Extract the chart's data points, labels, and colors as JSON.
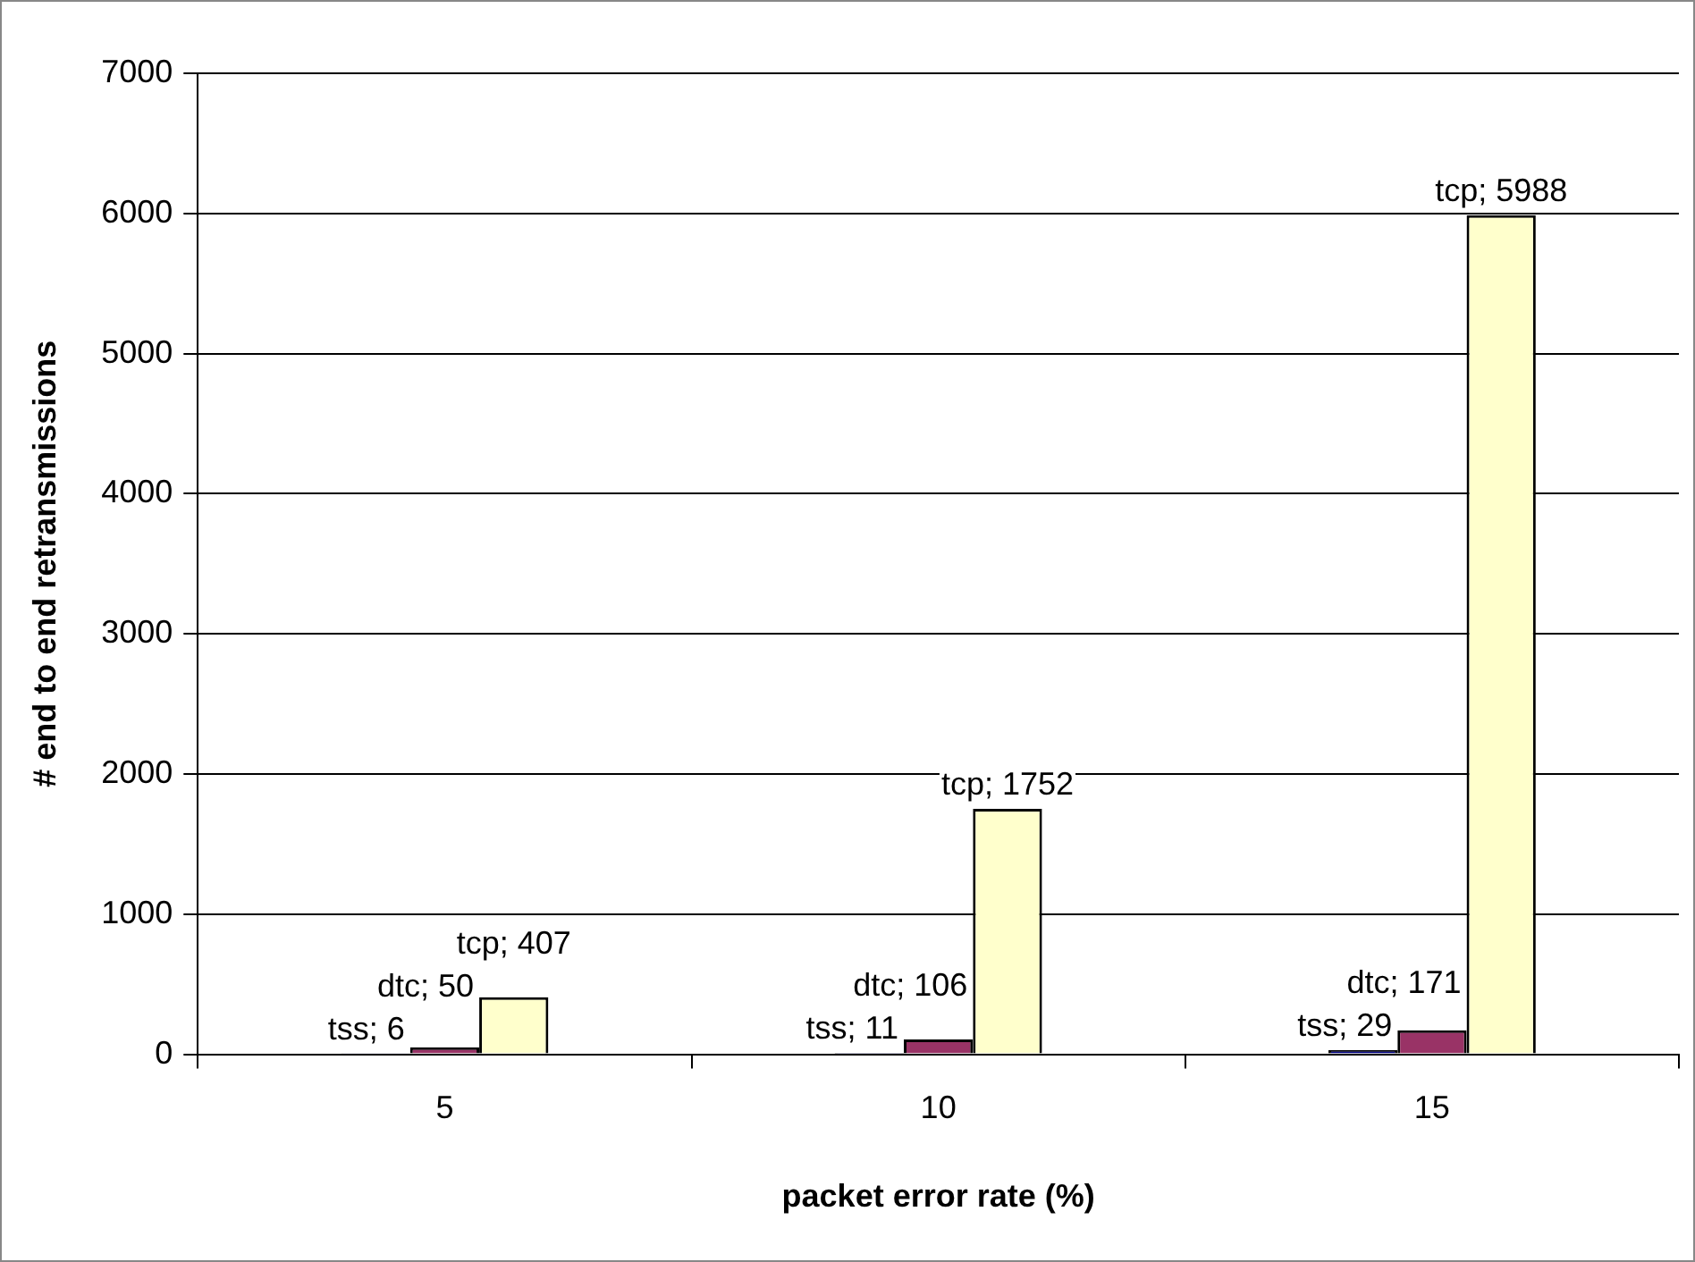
{
  "chart_data": {
    "type": "bar",
    "xlabel": "packet error rate (%)",
    "ylabel": "# end to end retransmissions",
    "categories": [
      "5",
      "10",
      "15"
    ],
    "series": [
      {
        "color": "#000080",
        "values": [
          6,
          11,
          29
        ],
        "value_labels": [
          "tss; 6",
          "tss; 11",
          "tss; 29"
        ]
      },
      {
        "color": "#993366",
        "values": [
          50,
          106,
          171
        ],
        "value_labels": [
          "dtc; 50",
          "dtc; 106",
          "dtc; 171"
        ]
      },
      {
        "color": "#ffffcc",
        "values": [
          407,
          1752,
          5988
        ],
        "value_labels": [
          "tcp; 407",
          "tcp; 1752",
          "tcp; 5988"
        ]
      }
    ],
    "ylim": [
      0,
      7000
    ],
    "yticks": [
      0,
      1000,
      2000,
      3000,
      4000,
      5000,
      6000,
      7000
    ],
    "grid": "y",
    "legend": false
  }
}
